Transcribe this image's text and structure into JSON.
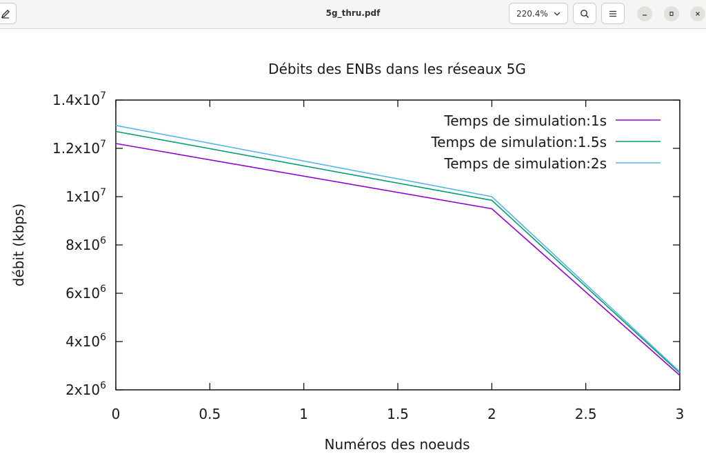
{
  "window": {
    "title": "5g_thru.pdf",
    "zoom_level": "220.4%"
  },
  "icons": {
    "annotate": "pencil-icon",
    "zoom": "chevron-down-icon",
    "search": "search-icon",
    "menu": "hamburger-menu-icon",
    "minimize": "minimize-icon",
    "maximize": "maximize-icon",
    "close": "close-icon"
  },
  "chart_data": {
    "type": "line",
    "title": "Débits des ENBs dans les réseaux 5G",
    "xlabel": "Numéros des noeuds",
    "ylabel": "débit (kbps)",
    "xlim": [
      0,
      3
    ],
    "ylim": [
      2000000,
      14000000
    ],
    "x_ticks": [
      {
        "value": 0,
        "label": "0"
      },
      {
        "value": 0.5,
        "label": "0.5"
      },
      {
        "value": 1,
        "label": "1"
      },
      {
        "value": 1.5,
        "label": "1.5"
      },
      {
        "value": 2,
        "label": "2"
      },
      {
        "value": 2.5,
        "label": "2.5"
      },
      {
        "value": 3,
        "label": "3"
      }
    ],
    "y_ticks": [
      {
        "value": 2000000,
        "mant": "2x10",
        "exp": "6"
      },
      {
        "value": 4000000,
        "mant": "4x10",
        "exp": "6"
      },
      {
        "value": 6000000,
        "mant": "6x10",
        "exp": "6"
      },
      {
        "value": 8000000,
        "mant": "8x10",
        "exp": "6"
      },
      {
        "value": 10000000,
        "mant": "1x10",
        "exp": "7"
      },
      {
        "value": 12000000,
        "mant": "1.2x10",
        "exp": "7"
      },
      {
        "value": 14000000,
        "mant": "1.4x10",
        "exp": "7"
      }
    ],
    "grid": false,
    "legend_position": "top-right",
    "series": [
      {
        "name": "Temps de simulation:1s",
        "color": "#9400d3",
        "x": [
          0,
          2,
          3
        ],
        "y": [
          12200000,
          9500000,
          2600000
        ]
      },
      {
        "name": "Temps de simulation:1.5s",
        "color": "#009e73",
        "x": [
          0,
          2,
          3
        ],
        "y": [
          12700000,
          9850000,
          2700000
        ]
      },
      {
        "name": "Temps de simulation:2s",
        "color": "#56b4e9",
        "x": [
          0,
          2,
          3
        ],
        "y": [
          12950000,
          10000000,
          2750000
        ]
      }
    ]
  }
}
